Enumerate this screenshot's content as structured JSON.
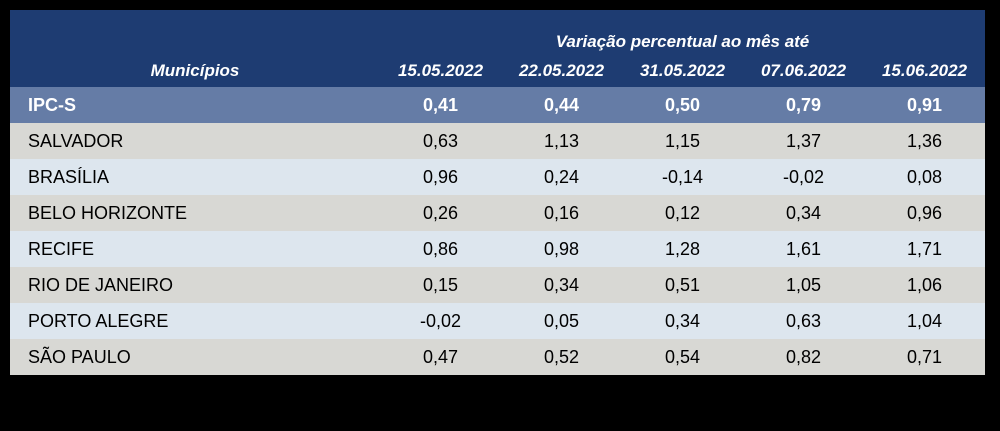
{
  "chart_data": {
    "type": "table",
    "title": "Variação percentual ao mês até",
    "row_header_label": "Municípios",
    "columns": [
      "15.05.2022",
      "22.05.2022",
      "31.05.2022",
      "07.06.2022",
      "15.06.2022"
    ],
    "summary_row": {
      "label": "IPC-S",
      "values": [
        "0,41",
        "0,44",
        "0,50",
        "0,79",
        "0,91"
      ]
    },
    "rows": [
      {
        "label": "SALVADOR",
        "values": [
          "0,63",
          "1,13",
          "1,15",
          "1,37",
          "1,36"
        ]
      },
      {
        "label": "BRASÍLIA",
        "values": [
          "0,96",
          "0,24",
          "-0,14",
          "-0,02",
          "0,08"
        ]
      },
      {
        "label": "BELO HORIZONTE",
        "values": [
          "0,26",
          "0,16",
          "0,12",
          "0,34",
          "0,96"
        ]
      },
      {
        "label": "RECIFE",
        "values": [
          "0,86",
          "0,98",
          "1,28",
          "1,61",
          "1,71"
        ]
      },
      {
        "label": "RIO DE JANEIRO",
        "values": [
          "0,15",
          "0,34",
          "0,51",
          "1,05",
          "1,06"
        ]
      },
      {
        "label": "PORTO ALEGRE",
        "values": [
          "-0,02",
          "0,05",
          "0,34",
          "0,63",
          "1,04"
        ]
      },
      {
        "label": "SÃO PAULO",
        "values": [
          "0,47",
          "0,52",
          "0,54",
          "0,82",
          "0,71"
        ]
      }
    ],
    "layout": {
      "legend": "none",
      "grid": "off",
      "row_striping": [
        "gray",
        "blue"
      ]
    }
  },
  "colors": {
    "page_bg": "#000000",
    "header_bg": "#1E3C72",
    "summary_bg": "#657CA6",
    "row_gray": "#D8D8D4",
    "row_blue": "#DDE6EE",
    "header_text": "#FFFFFF",
    "body_text": "#000000"
  }
}
